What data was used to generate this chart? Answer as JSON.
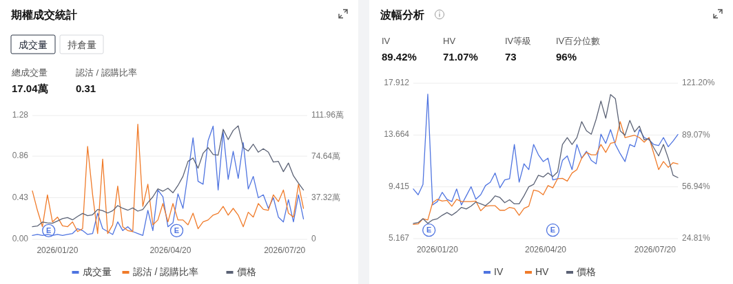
{
  "chart_data": [
    {
      "type": "line",
      "title": "期權成交統計",
      "annotations": [
        "成交量",
        "持倉量",
        "總成交量",
        "17.04萬",
        "認沽 / 認購比率",
        "0.31",
        {
          "text": "E",
          "x": "2026-01-13",
          "y": 0.09
        },
        {
          "text": "E",
          "x": "2026-04-25",
          "y": 0.09
        }
      ],
      "x": [
        "2025-12-31",
        "2026-01-04",
        "2026-01-08",
        "2026-01-12",
        "2026-01-16",
        "2026-01-20",
        "2026-01-24",
        "2026-01-28",
        "2026-02-01",
        "2026-02-05",
        "2026-02-09",
        "2026-02-13",
        "2026-02-17",
        "2026-02-21",
        "2026-02-25",
        "2026-03-01",
        "2026-03-05",
        "2026-03-09",
        "2026-03-13",
        "2026-03-17",
        "2026-03-21",
        "2026-03-25",
        "2026-03-29",
        "2026-04-02",
        "2026-04-06",
        "2026-04-10",
        "2026-04-14",
        "2026-04-18",
        "2026-04-22",
        "2026-04-26",
        "2026-04-30",
        "2026-05-04",
        "2026-05-08",
        "2026-05-12",
        "2026-05-16",
        "2026-05-20",
        "2026-05-24",
        "2026-05-28",
        "2026-06-01",
        "2026-06-05",
        "2026-06-09",
        "2026-06-13",
        "2026-06-17",
        "2026-06-21",
        "2026-06-25",
        "2026-06-29",
        "2026-07-03",
        "2026-07-07",
        "2026-07-11",
        "2026-07-15",
        "2026-07-19",
        "2026-07-23",
        "2026-07-27",
        "2026-07-31",
        "2026-08-04"
      ],
      "xlim": [
        "2025-12-31",
        "2026-08-07"
      ],
      "xticks": [
        {
          "value": "2026-01-20",
          "label": "2026/01/20"
        },
        {
          "value": "2026-04-20",
          "label": "2026/04/20"
        },
        {
          "value": "2026-07-20",
          "label": "2026/07/20"
        }
      ],
      "ylim": [
        0,
        1.28
      ],
      "yticks": [
        {
          "value": 0,
          "label": "0.00"
        },
        0.43,
        0.86,
        1.28
      ],
      "y2lim": [
        0,
        111.96
      ],
      "y2ticks": [
        0,
        {
          "value": 37.32,
          "label": "37.32萬"
        },
        {
          "value": 74.64,
          "label": "74.64萬"
        },
        {
          "value": 111.96,
          "label": "111.96萬"
        }
      ],
      "grid": "y",
      "legend": "bottom",
      "marker": "none",
      "series": [
        {
          "name": "成交量",
          "color": "#4f74e0",
          "values": [
            0.04,
            0.05,
            0.04,
            0.05,
            0.04,
            0.05,
            0.04,
            0.05,
            0.06,
            0.11,
            0.09,
            0.05,
            0.06,
            0.27,
            0.11,
            0.08,
            0.05,
            0.18,
            0.09,
            0.13,
            0.08,
            0.06,
            0.04,
            0.3,
            0.09,
            0.51,
            0.44,
            0.13,
            0.17,
            0.47,
            0.32,
            0.68,
            1.05,
            0.6,
            0.57,
            1.02,
            1.17,
            0.51,
            1.11,
            0.62,
            0.91,
            0.63,
            1.0,
            0.52,
            0.65,
            0.43,
            0.46,
            0.32,
            0.43,
            0.23,
            0.18,
            0.41,
            0.18,
            0.46,
            0.21
          ]
        },
        {
          "name": "認沽 / 認購比率",
          "color": "#f07b2a",
          "values": [
            0.5,
            0.3,
            0.13,
            0.46,
            0.18,
            0.23,
            0.14,
            0.13,
            0.18,
            0.08,
            0.11,
            0.96,
            0.46,
            0.06,
            0.83,
            0.06,
            0.15,
            0.55,
            0.13,
            0.09,
            0.08,
            1.19,
            0.34,
            0.57,
            0.15,
            0.2,
            0.37,
            0.18,
            0.37,
            0.2,
            0.2,
            0.15,
            0.27,
            0.11,
            0.18,
            0.2,
            0.25,
            0.27,
            0.34,
            0.25,
            0.32,
            0.25,
            0.13,
            0.28,
            0.23,
            0.37,
            0.31,
            0.3,
            0.46,
            0.39,
            0.51,
            0.27,
            0.23,
            0.57,
            0.32
          ]
        },
        {
          "name": "價格",
          "color": "#5b6275",
          "axis": "y2",
          "values": [
            11.4,
            12.0,
            15.6,
            14.9,
            14.5,
            16.6,
            18.7,
            19.7,
            17.6,
            20.7,
            23.4,
            21.4,
            22.2,
            27.0,
            25.9,
            23.8,
            25.9,
            30.5,
            28.0,
            26.3,
            28.4,
            25.5,
            27.0,
            33.2,
            38.4,
            45.6,
            43.5,
            46.2,
            42.1,
            48.7,
            57.0,
            70.5,
            73.6,
            64.3,
            77.8,
            82.9,
            76.7,
            76.1,
            99.5,
            90.2,
            98.5,
            102.6,
            82.9,
            79.8,
            86.0,
            78.8,
            81.9,
            78.8,
            69.9,
            70.5,
            61.2,
            69.0,
            57.4,
            50.8,
            44.6
          ]
        }
      ]
    },
    {
      "type": "line",
      "title": "波幅分析",
      "annotations": [
        "IV",
        "89.42%",
        "HV",
        "71.07%",
        "IV等級",
        "73",
        "IV百分位數",
        "96%",
        {
          "text": "E",
          "x": "2026-01-13",
          "y": 5.86
        },
        {
          "text": "E",
          "x": "2026-04-26",
          "y": 5.86
        }
      ],
      "x": [
        "2025-12-31",
        "2026-01-04",
        "2026-01-08",
        "2026-01-12",
        "2026-01-16",
        "2026-01-20",
        "2026-01-24",
        "2026-01-28",
        "2026-02-01",
        "2026-02-05",
        "2026-02-09",
        "2026-02-13",
        "2026-02-17",
        "2026-02-21",
        "2026-02-25",
        "2026-03-01",
        "2026-03-05",
        "2026-03-09",
        "2026-03-13",
        "2026-03-17",
        "2026-03-21",
        "2026-03-25",
        "2026-03-29",
        "2026-04-02",
        "2026-04-06",
        "2026-04-10",
        "2026-04-14",
        "2026-04-18",
        "2026-04-22",
        "2026-04-26",
        "2026-04-30",
        "2026-05-04",
        "2026-05-08",
        "2026-05-12",
        "2026-05-16",
        "2026-05-20",
        "2026-05-24",
        "2026-05-28",
        "2026-06-01",
        "2026-06-05",
        "2026-06-09",
        "2026-06-13",
        "2026-06-17",
        "2026-06-21",
        "2026-06-25",
        "2026-06-29",
        "2026-07-03",
        "2026-07-07",
        "2026-07-11",
        "2026-07-15",
        "2026-07-19",
        "2026-07-23",
        "2026-07-27",
        "2026-07-31",
        "2026-08-04",
        "2026-08-08"
      ],
      "xlim": [
        "2025-12-31",
        "2026-08-08"
      ],
      "xticks": [
        {
          "value": "2026-01-20",
          "label": "2026/01/20"
        },
        {
          "value": "2026-04-20",
          "label": "2026/04/20"
        },
        {
          "value": "2026-07-20",
          "label": "2026/07/20"
        }
      ],
      "ylim": [
        5.167,
        17.912
      ],
      "yticks": [
        5.167,
        9.415,
        13.664,
        17.912
      ],
      "y2lim": [
        24.81,
        121.2
      ],
      "y2ticks": [
        {
          "value": 24.81,
          "label": "24.81%"
        },
        {
          "value": 56.94,
          "label": "56.94%"
        },
        {
          "value": 89.07,
          "label": "89.07%"
        },
        {
          "value": 121.2,
          "label": "121.20%"
        }
      ],
      "grid": "y",
      "legend": "bottom",
      "marker": "none",
      "series": [
        {
          "name": "IV",
          "color": "#4f74e0",
          "axis": "y2",
          "values": [
            55.6,
            52.0,
            58.4,
            114.4,
            45.7,
            47.8,
            53.5,
            49.2,
            47.8,
            55.6,
            45.7,
            51.3,
            57.0,
            49.2,
            52.0,
            57.7,
            59.8,
            65.5,
            56.3,
            61.2,
            62.0,
            83.2,
            59.8,
            71.2,
            67.6,
            83.2,
            76.8,
            72.6,
            74.7,
            61.2,
            62.0,
            73.3,
            76.1,
            67.6,
            83.2,
            74.7,
            79.0,
            73.3,
            71.2,
            89.6,
            83.9,
            92.4,
            83.2,
            77.5,
            72.6,
            83.2,
            81.8,
            92.4,
            87.5,
            86.1,
            83.2,
            82.5,
            87.5,
            81.8,
            85.3,
            89.4
          ]
        },
        {
          "name": "HV",
          "color": "#f07b2a",
          "axis": "y2",
          "values": [
            33.6,
            33.9,
            37.1,
            36.4,
            47.1,
            49.2,
            48.1,
            48.5,
            44.9,
            49.2,
            47.8,
            47.8,
            47.8,
            48.1,
            42.1,
            44.9,
            45.2,
            45.2,
            42.4,
            42.4,
            44.2,
            43.5,
            39.3,
            43.5,
            44.9,
            54.9,
            54.2,
            52.0,
            57.7,
            56.3,
            62.0,
            62.2,
            60.5,
            65.5,
            67.6,
            74.7,
            78.3,
            76.8,
            76.8,
            83.2,
            78.3,
            83.9,
            84.6,
            97.4,
            87.5,
            88.2,
            88.9,
            87.5,
            84.6,
            87.5,
            77.5,
            67.6,
            72.6,
            69.0,
            71.9,
            71.1
          ]
        },
        {
          "name": "價格",
          "color": "#5b6275",
          "values": [
            6.42,
            6.48,
            6.8,
            6.42,
            6.7,
            6.8,
            7.08,
            7.3,
            7.08,
            7.36,
            7.73,
            7.6,
            7.83,
            8.17,
            8.02,
            7.87,
            8.2,
            8.67,
            8.54,
            8.11,
            8.35,
            8.02,
            8.02,
            8.67,
            9.42,
            9.61,
            10.36,
            10.22,
            10.55,
            10.26,
            10.64,
            12.89,
            13.45,
            12.89,
            13.45,
            14.76,
            14.01,
            13.73,
            14.95,
            16.45,
            15.04,
            16.98,
            16.64,
            14.01,
            13.64,
            14.86,
            13.92,
            14.39,
            13.26,
            13.36,
            12.61,
            11.95,
            12.89,
            11.76,
            10.36,
            10.17
          ]
        }
      ]
    }
  ]
}
